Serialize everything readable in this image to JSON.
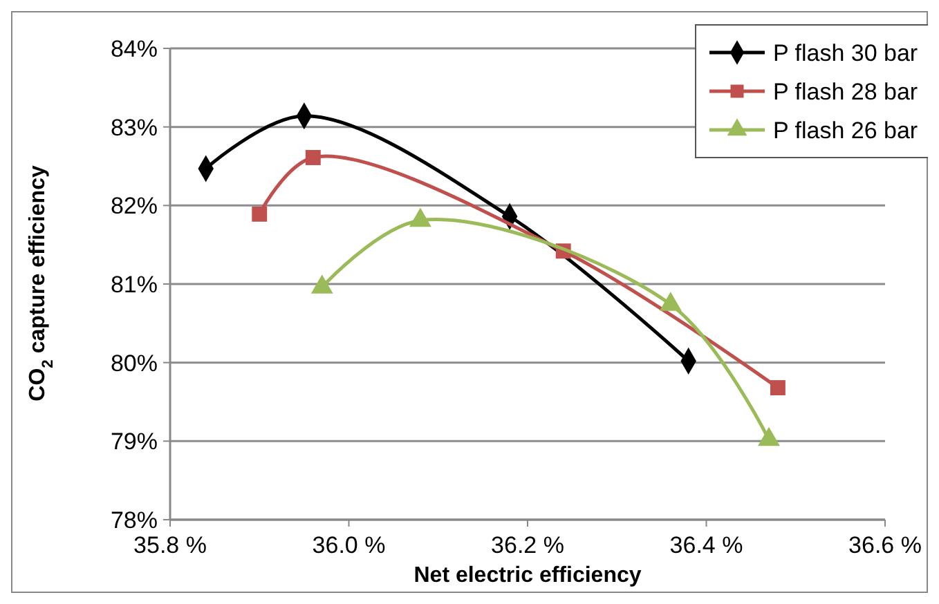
{
  "chart_data": {
    "type": "line",
    "xlabel": "Net electric efficiency",
    "ylabel": "CO$_{2}$ capture efficiency",
    "xlim": [
      35.8,
      36.6
    ],
    "xticks": [
      {
        "value": 35.8,
        "label": "35.8 %"
      },
      {
        "value": 36.0,
        "label": "36.0 %"
      },
      {
        "value": 36.2,
        "label": "36.2 %"
      },
      {
        "value": 36.4,
        "label": "36.4 %"
      },
      {
        "value": 36.6,
        "label": "36.6 %"
      }
    ],
    "ylim": [
      78,
      84
    ],
    "yticks": [
      {
        "value": 78,
        "label": "78%"
      },
      {
        "value": 79,
        "label": "79%"
      },
      {
        "value": 80,
        "label": "80%"
      },
      {
        "value": 81,
        "label": "81%"
      },
      {
        "value": 82,
        "label": "82%"
      },
      {
        "value": 83,
        "label": "83%"
      },
      {
        "value": 84,
        "label": "84%"
      }
    ],
    "grid": "y",
    "legend": "top right",
    "series": [
      {
        "name": "P flash 30 bar",
        "color": "#000000",
        "marker": "diamond",
        "x": [
          35.84,
          35.95,
          36.18,
          36.38
        ],
        "values": [
          82.47,
          83.14,
          81.86,
          80.02
        ]
      },
      {
        "name": "P flash 28 bar",
        "color": "#c0504d",
        "marker": "square",
        "x": [
          35.9,
          35.96,
          36.24,
          36.48
        ],
        "values": [
          81.89,
          82.61,
          81.42,
          79.68
        ]
      },
      {
        "name": "P flash 26 bar",
        "color": "#9bbb59",
        "marker": "triangle",
        "x": [
          35.97,
          36.08,
          36.36,
          36.47
        ],
        "values": [
          80.96,
          81.81,
          80.74,
          79.02
        ]
      }
    ]
  }
}
